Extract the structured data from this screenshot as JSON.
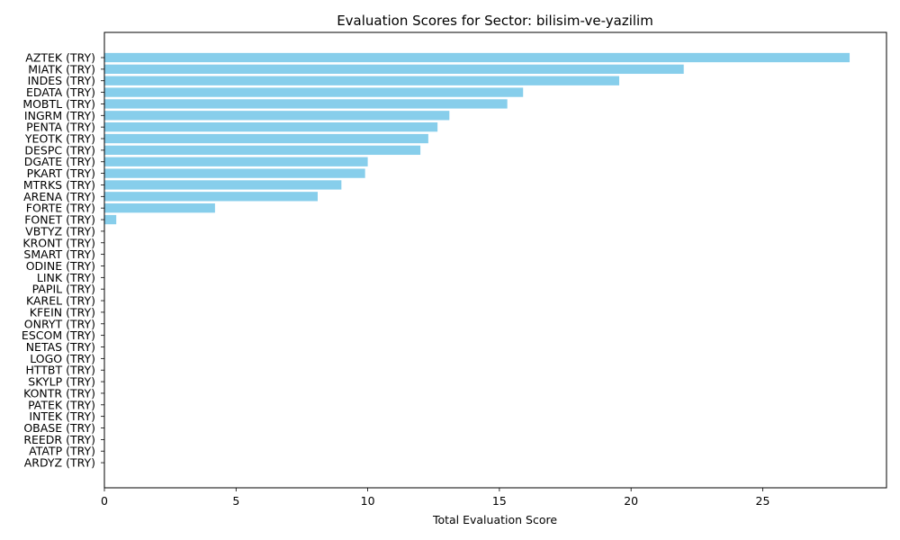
{
  "chart_data": {
    "type": "bar",
    "orientation": "horizontal",
    "title": "Evaluation Scores for Sector: bilisim-ve-yazilim",
    "xlabel": "Total Evaluation Score",
    "ylabel": "",
    "xlim": [
      0,
      29.7
    ],
    "xticks": [
      0,
      5,
      10,
      15,
      20,
      25
    ],
    "grid": false,
    "bar_color": "#87ceeb",
    "categories": [
      "AZTEK (TRY)",
      "MIATK (TRY)",
      "INDES (TRY)",
      "EDATA (TRY)",
      "MOBTL (TRY)",
      "INGRM (TRY)",
      "PENTA (TRY)",
      "YEOTK (TRY)",
      "DESPC (TRY)",
      "DGATE (TRY)",
      "PKART (TRY)",
      "MTRKS (TRY)",
      "ARENA (TRY)",
      "FORTE (TRY)",
      "FONET (TRY)",
      "VBTYZ (TRY)",
      "KRONT (TRY)",
      "SMART (TRY)",
      "ODINE (TRY)",
      "LINK (TRY)",
      "PAPIL (TRY)",
      "KAREL (TRY)",
      "KFEIN (TRY)",
      "ONRYT (TRY)",
      "ESCOM (TRY)",
      "NETAS (TRY)",
      "LOGO (TRY)",
      "HTTBT (TRY)",
      "SKYLP (TRY)",
      "KONTR (TRY)",
      "PATEK (TRY)",
      "INTEK (TRY)",
      "OBASE (TRY)",
      "REEDR (TRY)",
      "ATATP (TRY)",
      "ARDYZ (TRY)"
    ],
    "values": [
      28.3,
      22.0,
      19.55,
      15.9,
      15.3,
      13.1,
      12.65,
      12.3,
      12.0,
      10.0,
      9.9,
      9.0,
      8.1,
      4.2,
      0.45,
      0,
      0,
      0,
      0,
      0,
      0,
      0,
      0,
      0,
      0,
      0,
      0,
      0,
      0,
      0,
      0,
      0,
      0,
      0,
      0,
      0
    ]
  }
}
